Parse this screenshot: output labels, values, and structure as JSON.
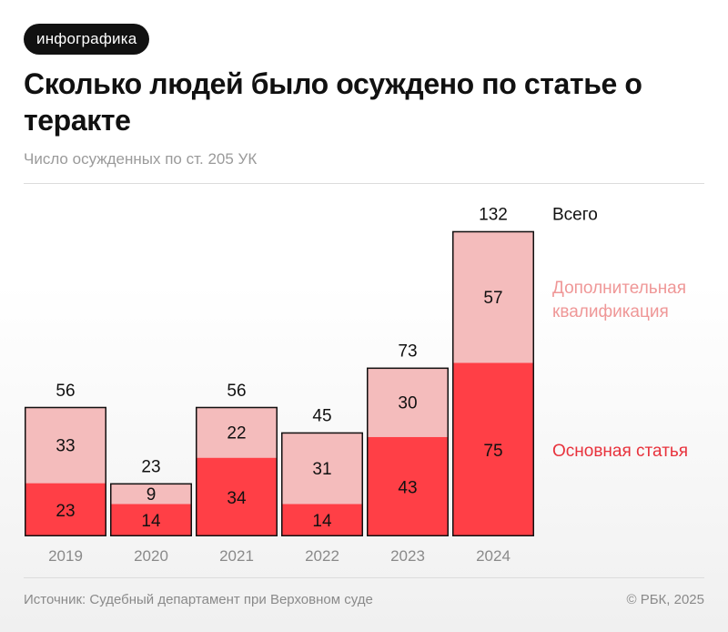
{
  "badge": "инфографика",
  "title": "Сколько людей было осуждено по статье о теракте",
  "subtitle": "Число осужденных по ст. 205 УК",
  "source": "Источник: Судебный департамент при Верховном суде",
  "copyright": "© РБК, 2025",
  "colors": {
    "main": "#ff3f46",
    "additional": "#f4bcbc",
    "outline": "#111111",
    "main_label": "#e8323c",
    "additional_label": "#ef9797"
  },
  "chart_data": {
    "type": "bar",
    "stacked": true,
    "categories": [
      "2019",
      "2020",
      "2021",
      "2022",
      "2023",
      "2024"
    ],
    "series": [
      {
        "name": "Основная статья",
        "values": [
          23,
          14,
          34,
          14,
          43,
          75
        ]
      },
      {
        "name": "Дополнительная квалификация",
        "values": [
          33,
          9,
          22,
          31,
          30,
          57
        ]
      }
    ],
    "totals": [
      56,
      23,
      56,
      45,
      73,
      132
    ],
    "total_label": "Всего",
    "legend_position": "right, labels next to the last bar",
    "grid": false
  }
}
